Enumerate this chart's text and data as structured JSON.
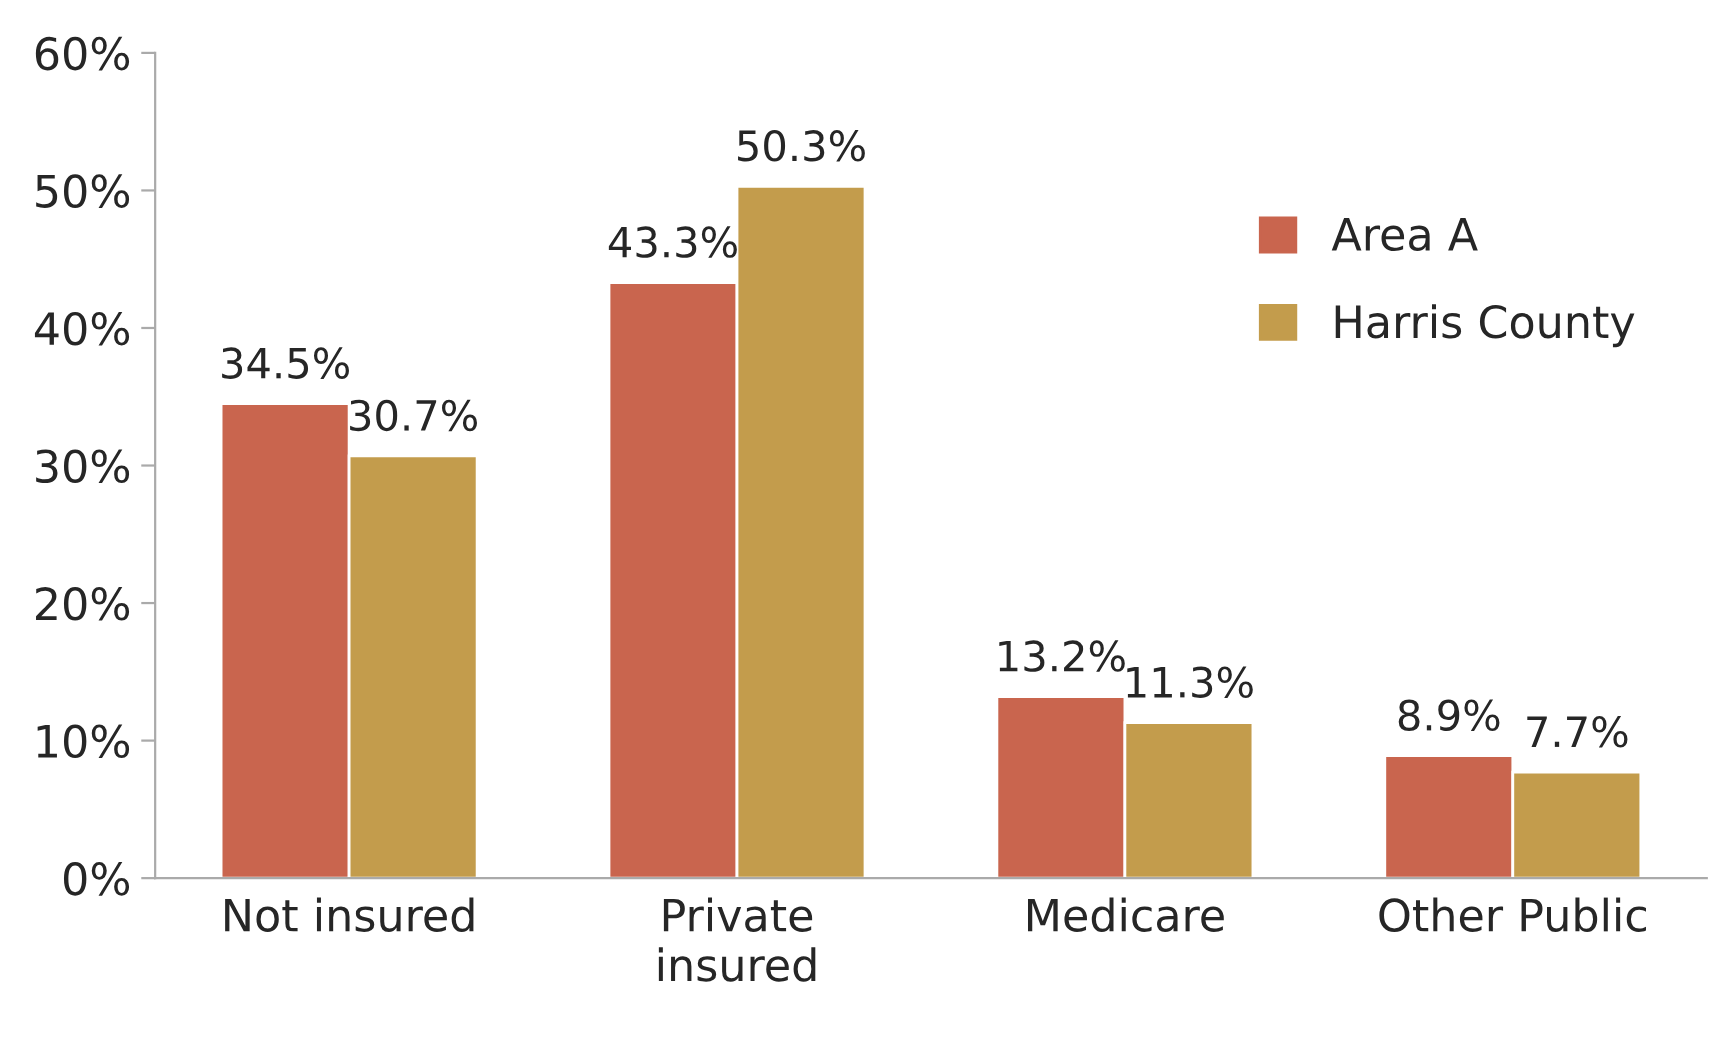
{
  "chart_data": {
    "type": "bar",
    "categories": [
      "Not insured",
      "Private\ninsured",
      "Medicare",
      "Other Public"
    ],
    "series": [
      {
        "name": "Area A",
        "color": "#c9654e",
        "values": [
          34.5,
          43.3,
          13.2,
          8.9
        ],
        "value_labels": [
          "34.5%",
          "43.3%",
          "13.2%",
          "8.9%"
        ]
      },
      {
        "name": "Harris County",
        "color": "#c39c4c",
        "values": [
          30.7,
          50.3,
          11.3,
          7.7
        ],
        "value_labels": [
          "30.7%",
          "50.3%",
          "11.3%",
          "7.7%"
        ]
      }
    ],
    "ylim": [
      0,
      60
    ],
    "yticks": [
      {
        "value": 0,
        "label": "0%"
      },
      {
        "value": 10,
        "label": "10%"
      },
      {
        "value": 20,
        "label": "20%"
      },
      {
        "value": 30,
        "label": "30%"
      },
      {
        "value": 40,
        "label": "40%"
      },
      {
        "value": 50,
        "label": "50%"
      },
      {
        "value": 60,
        "label": "60%"
      }
    ],
    "grid": false,
    "legend": "top right"
  }
}
